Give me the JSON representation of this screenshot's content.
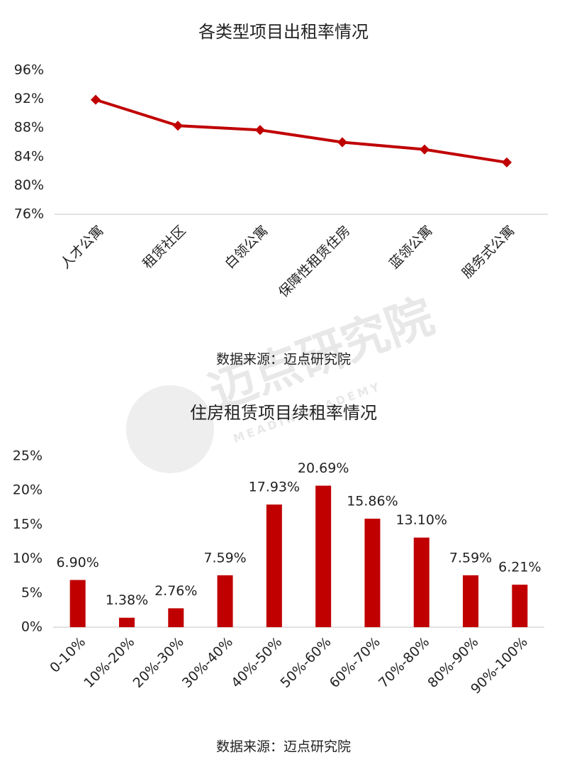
{
  "chart_data": [
    {
      "type": "line",
      "title": "各类型项目出租率情况",
      "categories": [
        "人才公寓",
        "租赁社区",
        "白领公寓",
        "保障性租赁住房",
        "蓝领公寓",
        "服务式公寓"
      ],
      "values": [
        91.9,
        88.3,
        87.7,
        86.0,
        85.0,
        83.2
      ],
      "color": "#c00000",
      "ylim": [
        76,
        96
      ],
      "yticks": [
        {
          "value": 76,
          "label": "76%"
        },
        {
          "value": 80,
          "label": "80%"
        },
        {
          "value": 84,
          "label": "84%"
        },
        {
          "value": 88,
          "label": "88%"
        },
        {
          "value": 92,
          "label": "92%"
        },
        {
          "value": 96,
          "label": "96%"
        }
      ],
      "grid": false,
      "source": "数据来源：迈点研究院"
    },
    {
      "type": "bar",
      "title": "住房租赁项目续租率情况",
      "categories": [
        "0-10%",
        "10%-20%",
        "20%-30%",
        "30%-40%",
        "40%-50%",
        "50%-60%",
        "60%-70%",
        "70%-80%",
        "80%-90%",
        "90%-100%"
      ],
      "values": [
        6.9,
        1.38,
        2.76,
        7.59,
        17.93,
        20.69,
        15.86,
        13.1,
        7.59,
        6.21
      ],
      "value_labels": [
        "6.90%",
        "1.38%",
        "2.76%",
        "7.59%",
        "17.93%",
        "20.69%",
        "15.86%",
        "13.10%",
        "7.59%",
        "6.21%"
      ],
      "color": "#c00000",
      "ylim": [
        0,
        25
      ],
      "yticks": [
        {
          "value": 0,
          "label": "0%"
        },
        {
          "value": 5,
          "label": "5%"
        },
        {
          "value": 10,
          "label": "10%"
        },
        {
          "value": 15,
          "label": "15%"
        },
        {
          "value": 20,
          "label": "20%"
        },
        {
          "value": 25,
          "label": "25%"
        }
      ],
      "grid": false,
      "source": "数据来源：迈点研究院"
    }
  ],
  "watermark": {
    "name": "迈点研究院",
    "subtitle": "MEADIN ACADEMY"
  }
}
